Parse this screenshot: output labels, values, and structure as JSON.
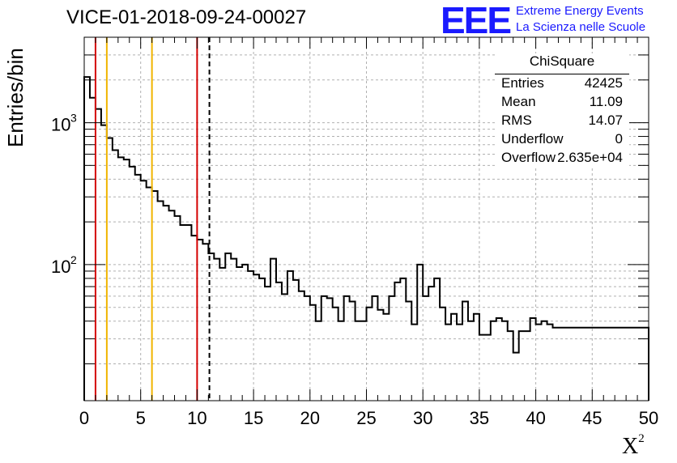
{
  "header": {
    "title": "VICE-01-2018-09-24-00027",
    "logo_text": "EEE",
    "logo_line1": "Extreme Energy Events",
    "logo_line2": "La Scienza nelle Scuole"
  },
  "stats_box": {
    "title": "ChiSquare",
    "rows": [
      {
        "key": "Entries",
        "value": "42425"
      },
      {
        "key": "Mean",
        "value": "11.09"
      },
      {
        "key": "RMS",
        "value": "14.07"
      },
      {
        "key": "Underflow",
        "value": "0"
      },
      {
        "key": "Overflow",
        "value": "2.635e+04"
      }
    ]
  },
  "colors": {
    "red_line": "#d40000",
    "yellow_line": "#f0b400",
    "grid": "#b0b0b0",
    "logo": "#1a1aff"
  },
  "chart_data": {
    "type": "histogram",
    "title": "VICE-01-2018-09-24-00027",
    "xlabel": "X",
    "xlabel_superscript": "2",
    "ylabel": "Entries/bin",
    "xlim": [
      0,
      50
    ],
    "ylim": [
      11,
      4000
    ],
    "yscale": "log",
    "x_ticks": [
      "0",
      "5",
      "10",
      "15",
      "20",
      "25",
      "30",
      "35",
      "40",
      "45",
      "50"
    ],
    "y_ticks": [
      {
        "value": 1000,
        "base": "10",
        "exp": "3"
      },
      {
        "value": 100,
        "base": "10",
        "exp": "2"
      }
    ],
    "bin_width": 0.5,
    "values": [
      2100,
      1500,
      1250,
      960,
      780,
      640,
      570,
      550,
      490,
      430,
      390,
      350,
      330,
      280,
      260,
      240,
      220,
      190,
      190,
      160,
      150,
      140,
      120,
      110,
      95,
      120,
      110,
      96,
      100,
      90,
      85,
      80,
      70,
      110,
      75,
      62,
      90,
      78,
      65,
      60,
      52,
      40,
      60,
      58,
      50,
      40,
      60,
      55,
      40,
      40,
      50,
      60,
      48,
      45,
      60,
      75,
      80,
      55,
      38,
      100,
      60,
      70,
      80,
      50,
      38,
      45,
      38,
      55,
      40,
      45,
      32,
      32,
      40,
      42,
      40,
      34,
      24,
      34,
      34,
      42,
      38,
      40,
      38,
      36,
      36,
      36,
      36,
      36,
      36,
      36,
      36,
      36,
      36,
      36,
      36,
      36,
      36,
      36,
      36,
      36
    ]
  },
  "markers": {
    "vertical_lines": [
      {
        "x": 1,
        "color": "red"
      },
      {
        "x": 2,
        "color": "yellow"
      },
      {
        "x": 6,
        "color": "yellow"
      },
      {
        "x": 10,
        "color": "red"
      }
    ],
    "dashed_line": {
      "x": 11.09
    }
  }
}
